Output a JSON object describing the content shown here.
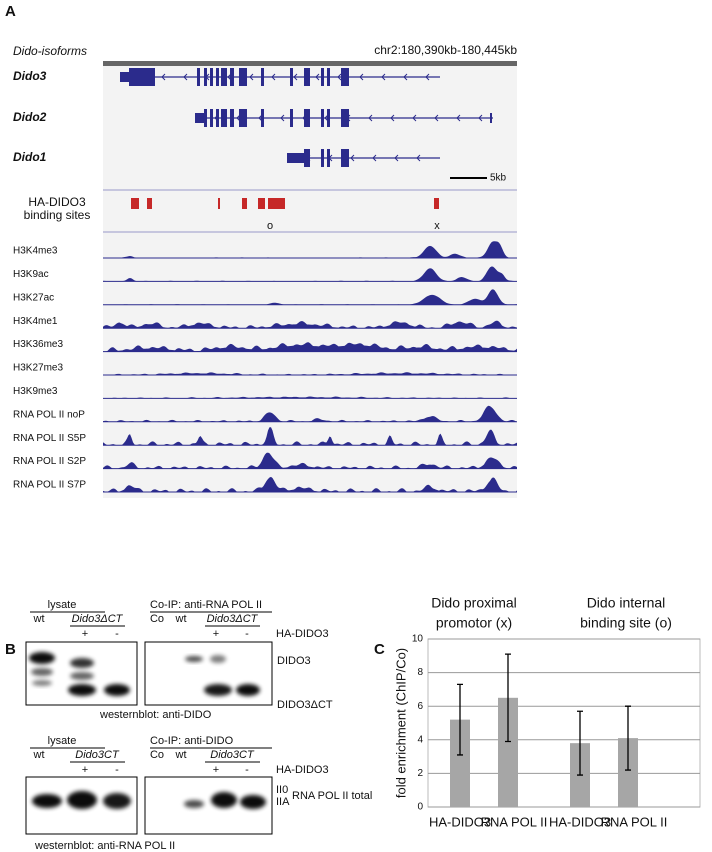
{
  "panels": {
    "a": {
      "letter": "A",
      "header": "Dido-isoforms",
      "coordinates": "chr2:180,390kb-180,445kb",
      "isoforms": [
        "Dido3",
        "Dido2",
        "Dido1"
      ],
      "scale": "5kb",
      "binding_label": [
        "HA-DIDO3",
        "binding sites"
      ],
      "site_marks": [
        "o",
        "x"
      ],
      "tracks": [
        "H3K4me3",
        "H3K9ac",
        "H3K27ac",
        "H3K4me1",
        "H3K36me3",
        "H3K27me3",
        "H3K9me3",
        "RNA POL II noP",
        "RNA POL II S5P",
        "RNA POL II S2P",
        "RNA POL II S7P"
      ]
    },
    "b": {
      "letter": "B",
      "top": {
        "lysate": "lysate",
        "coip": "Co-IP: anti-RNA POL II",
        "lanes_left": [
          "wt",
          "Dido3ΔCT"
        ],
        "lanes_right": [
          "Co",
          "wt",
          "Dido3ΔCT"
        ],
        "signs": [
          "+",
          "-",
          "+",
          "-"
        ],
        "treatment": "HA-DIDO3",
        "bands": [
          "DIDO3",
          "DIDO3ΔCT"
        ],
        "blot": "westernblot: anti-DIDO"
      },
      "bottom": {
        "lysate": "lysate",
        "coip": "Co-IP: anti-DIDO",
        "lanes_left": [
          "wt",
          "Dido3CT"
        ],
        "lanes_right": [
          "Co",
          "wt",
          "Dido3CT"
        ],
        "signs": [
          "+",
          "-",
          "+",
          "-"
        ],
        "treatment": "HA-DIDO3",
        "bands": [
          "II0",
          "IIA"
        ],
        "band_label": "RNA POL II total",
        "blot": "westernblot: anti-RNA POL II"
      }
    }
  },
  "chart_data": {
    "type": "bar",
    "panel_label": "C",
    "group_labels": [
      [
        "Dido proximal",
        "promotor (x)"
      ],
      [
        "Dido internal",
        "binding site (o)"
      ]
    ],
    "categories": [
      "HA-DIDO3",
      "RNA POL II",
      "HA-DIDO3",
      "RNA POL II"
    ],
    "y_label": "fold enrichment (ChIP/Co)",
    "ylim": [
      0,
      10
    ],
    "yticks": [
      0,
      2,
      4,
      6,
      8,
      10
    ],
    "grid": true,
    "series": [
      {
        "color": "#a6a6a6",
        "values": [
          5.2,
          6.5,
          3.8,
          4.1
        ],
        "errors": [
          2.1,
          2.6,
          1.9,
          1.9
        ]
      }
    ]
  }
}
